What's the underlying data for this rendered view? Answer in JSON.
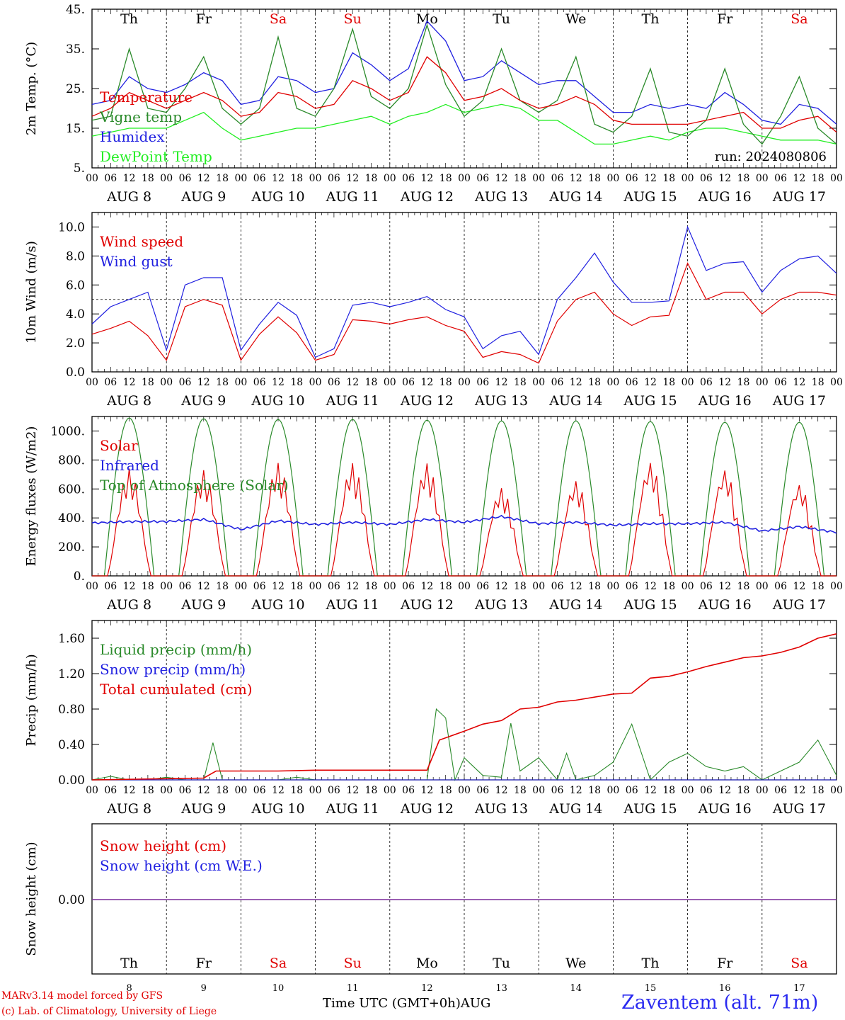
{
  "chart_data": [
    {
      "type": "line",
      "ylabel": "2m Temp. (°C)",
      "ylim": [
        5,
        45
      ],
      "yticks": [
        "45.",
        "35.",
        "25.",
        "15.",
        "5."
      ],
      "annotation": "run: 2024080806",
      "weekday_labels": [
        "Th",
        "Fr",
        "Sa",
        "Su",
        "Mo",
        "Tu",
        "We",
        "Th",
        "Fr",
        "Sa"
      ],
      "weekend_color": "#e00000",
      "legend_placement": "left",
      "series": [
        {
          "name": "Temperature",
          "color": "#e00000",
          "x": [
            0,
            6,
            12,
            18,
            24,
            30,
            36,
            42,
            48,
            54,
            60,
            66,
            72,
            78,
            84,
            90,
            96,
            102,
            108,
            114,
            120,
            126,
            132,
            138,
            144,
            150,
            156,
            162,
            168,
            174,
            180,
            186,
            192,
            198,
            204,
            210,
            216,
            222,
            228,
            234,
            240
          ],
          "y": [
            18,
            20,
            24,
            22,
            20,
            22,
            24,
            22,
            18,
            19,
            24,
            23,
            20,
            21,
            27,
            25,
            22,
            24,
            33,
            29,
            22,
            23,
            25,
            22,
            20,
            21,
            23,
            21,
            17,
            16,
            16,
            16,
            16,
            17,
            18,
            19,
            15,
            15,
            17,
            18,
            14
          ]
        },
        {
          "name": "Vigne temp",
          "color": "#2a8a2a",
          "x": [
            0,
            6,
            12,
            18,
            24,
            30,
            36,
            42,
            48,
            54,
            60,
            66,
            72,
            78,
            84,
            90,
            96,
            102,
            108,
            114,
            120,
            126,
            132,
            138,
            144,
            150,
            156,
            162,
            168,
            174,
            180,
            186,
            192,
            198,
            204,
            210,
            216,
            222,
            228,
            234,
            240
          ],
          "y": [
            17,
            18,
            35,
            20,
            19,
            25,
            33,
            20,
            16,
            20,
            38,
            20,
            18,
            25,
            40,
            23,
            20,
            25,
            41,
            26,
            18,
            22,
            35,
            22,
            19,
            22,
            33,
            16,
            14,
            18,
            30,
            14,
            13,
            17,
            30,
            16,
            11,
            18,
            28,
            15,
            11
          ]
        },
        {
          "name": "Humidex",
          "color": "#2020e0",
          "x": [
            0,
            6,
            12,
            18,
            24,
            30,
            36,
            42,
            48,
            54,
            60,
            66,
            72,
            78,
            84,
            90,
            96,
            102,
            108,
            114,
            120,
            126,
            132,
            138,
            144,
            150,
            156,
            162,
            168,
            174,
            180,
            186,
            192,
            198,
            204,
            210,
            216,
            222,
            228,
            234,
            240
          ],
          "y": [
            21,
            22,
            28,
            25,
            24,
            26,
            29,
            27,
            21,
            22,
            28,
            27,
            24,
            25,
            34,
            31,
            27,
            30,
            42,
            37,
            27,
            28,
            32,
            29,
            26,
            27,
            27,
            23,
            19,
            19,
            21,
            20,
            21,
            20,
            24,
            21,
            17,
            16,
            21,
            20,
            16
          ]
        },
        {
          "name": "DewPoint Temp",
          "color": "#22ee22",
          "x": [
            0,
            6,
            12,
            18,
            24,
            30,
            36,
            42,
            48,
            54,
            60,
            66,
            72,
            78,
            84,
            90,
            96,
            102,
            108,
            114,
            120,
            126,
            132,
            138,
            144,
            150,
            156,
            162,
            168,
            174,
            180,
            186,
            192,
            198,
            204,
            210,
            216,
            222,
            228,
            234,
            240
          ],
          "y": [
            13,
            14,
            15,
            15,
            15,
            17,
            19,
            15,
            12,
            13,
            14,
            15,
            15,
            16,
            17,
            18,
            16,
            18,
            19,
            21,
            19,
            20,
            21,
            20,
            17,
            17,
            14,
            11,
            11,
            12,
            13,
            12,
            14,
            15,
            15,
            14,
            13,
            12,
            12,
            12,
            11
          ]
        }
      ]
    },
    {
      "type": "line",
      "ylabel": "10m Wind (m/s)",
      "ylim": [
        0,
        11
      ],
      "yticks": [
        "10.0",
        "8.0",
        "6.0",
        "4.0",
        "2.0",
        "0.0"
      ],
      "reference_line": 5,
      "legend_placement": "left",
      "series": [
        {
          "name": "Wind speed",
          "color": "#e00000",
          "x": [
            0,
            6,
            12,
            18,
            24,
            30,
            36,
            42,
            48,
            54,
            60,
            66,
            72,
            78,
            84,
            90,
            96,
            102,
            108,
            114,
            120,
            126,
            132,
            138,
            144,
            150,
            156,
            162,
            168,
            174,
            180,
            186,
            192,
            198,
            204,
            210,
            216,
            222,
            228,
            234,
            240
          ],
          "y": [
            2.6,
            3.0,
            3.5,
            2.5,
            0.8,
            4.5,
            5.0,
            4.6,
            0.8,
            2.6,
            3.8,
            2.7,
            0.8,
            1.2,
            3.6,
            3.5,
            3.3,
            3.6,
            3.8,
            3.2,
            2.8,
            1.0,
            1.4,
            1.2,
            0.6,
            3.5,
            5.0,
            5.5,
            4.0,
            3.2,
            3.8,
            3.9,
            7.5,
            5.0,
            5.5,
            5.5,
            4.0,
            5.0,
            5.5,
            5.5,
            5.3
          ]
        },
        {
          "name": "Wind gust",
          "color": "#2020e0",
          "x": [
            0,
            6,
            12,
            18,
            24,
            30,
            36,
            42,
            48,
            54,
            60,
            66,
            72,
            78,
            84,
            90,
            96,
            102,
            108,
            114,
            120,
            126,
            132,
            138,
            144,
            150,
            156,
            162,
            168,
            174,
            180,
            186,
            192,
            198,
            204,
            210,
            216,
            222,
            228,
            234,
            240
          ],
          "y": [
            3.3,
            4.5,
            5.0,
            5.5,
            1.5,
            6.0,
            6.5,
            6.5,
            1.5,
            3.3,
            4.8,
            3.9,
            1.0,
            1.6,
            4.6,
            4.8,
            4.5,
            4.8,
            5.2,
            4.3,
            3.8,
            1.6,
            2.5,
            2.8,
            1.2,
            5.0,
            6.5,
            8.2,
            6.2,
            4.8,
            4.8,
            4.9,
            10.0,
            7.0,
            7.5,
            7.6,
            5.5,
            7.0,
            7.8,
            8.0,
            6.8
          ]
        }
      ]
    },
    {
      "type": "line",
      "ylabel": "Energy fluxes (W/m2)",
      "ylim": [
        0,
        1100
      ],
      "yticks": [
        "1000.",
        "800.",
        "600.",
        "400.",
        "200.",
        "0."
      ],
      "legend_placement": "left",
      "series": [
        {
          "name": "Solar",
          "color": "#e00000",
          "daily_peak": [
            740,
            730,
            780,
            780,
            780,
            610,
            660,
            790,
            740,
            640
          ]
        },
        {
          "name": "Infrared",
          "color": "#2020e0",
          "x": [
            0,
            12,
            24,
            36,
            48,
            60,
            72,
            84,
            96,
            108,
            120,
            132,
            144,
            156,
            168,
            180,
            192,
            204,
            216,
            228,
            240
          ],
          "y": [
            365,
            375,
            375,
            390,
            320,
            380,
            355,
            370,
            355,
            390,
            370,
            410,
            360,
            370,
            350,
            360,
            360,
            370,
            310,
            340,
            300
          ]
        },
        {
          "name": "Top of Atmosphere (Solar)",
          "color": "#2a8a2a",
          "daily_peak": [
            1090,
            1085,
            1080,
            1080,
            1075,
            1070,
            1070,
            1065,
            1060,
            1060
          ]
        }
      ]
    },
    {
      "type": "line",
      "ylabel": "Precip (mm/h)",
      "ylim": [
        0,
        1.8
      ],
      "yticks": [
        "1.60",
        "1.20",
        "0.80",
        "0.40",
        "0.00"
      ],
      "legend_placement": "left",
      "series": [
        {
          "name": "Liquid precip (mm/h)",
          "color": "#2a8a2a",
          "x": [
            0,
            6,
            12,
            18,
            24,
            30,
            36,
            39,
            42,
            48,
            60,
            66,
            72,
            96,
            108,
            111,
            114,
            117,
            120,
            126,
            132,
            135,
            138,
            144,
            150,
            153,
            156,
            162,
            168,
            174,
            180,
            186,
            192,
            198,
            204,
            210,
            216,
            222,
            228,
            234,
            240
          ],
          "y": [
            0,
            0.04,
            0,
            0,
            0.03,
            0,
            0,
            0.42,
            0,
            0,
            0,
            0.03,
            0,
            0,
            0,
            0.8,
            0.7,
            0,
            0.25,
            0.05,
            0.03,
            0.64,
            0.1,
            0.25,
            0,
            0.3,
            0,
            0.05,
            0.2,
            0.63,
            0,
            0.2,
            0.3,
            0.15,
            0.1,
            0.15,
            0,
            0.1,
            0.2,
            0.45,
            0.05
          ]
        },
        {
          "name": "Snow precip (mm/h)",
          "color": "#2020e0",
          "x": [
            0,
            240
          ],
          "y": [
            0,
            0
          ]
        },
        {
          "name": "Total cumulated (cm)",
          "color": "#e00000",
          "x": [
            0,
            36,
            40,
            48,
            60,
            72,
            96,
            108,
            112,
            120,
            126,
            132,
            138,
            144,
            150,
            156,
            168,
            174,
            180,
            186,
            192,
            198,
            204,
            210,
            216,
            222,
            228,
            234,
            240
          ],
          "y": [
            0,
            0.02,
            0.1,
            0.1,
            0.1,
            0.11,
            0.11,
            0.11,
            0.45,
            0.55,
            0.63,
            0.67,
            0.8,
            0.82,
            0.88,
            0.9,
            0.97,
            0.98,
            1.15,
            1.17,
            1.22,
            1.28,
            1.33,
            1.38,
            1.4,
            1.44,
            1.5,
            1.6,
            1.65
          ]
        }
      ]
    },
    {
      "type": "line",
      "ylabel": "Snow height (cm)",
      "yticks": [
        "0.00"
      ],
      "legend_placement": "left",
      "weekday_labels": [
        "Th",
        "Fr",
        "Sa",
        "Su",
        "Mo",
        "Tu",
        "We",
        "Th",
        "Fr",
        "Sa"
      ],
      "day_numbers": [
        "8",
        "9",
        "10",
        "11",
        "12",
        "13",
        "14",
        "15",
        "16",
        "17"
      ],
      "xlabel": "Time UTC (GMT+0h)",
      "month": "AUG",
      "series": [
        {
          "name": "Snow height (cm)",
          "color": "#e00000",
          "x": [
            0,
            240
          ],
          "y": [
            0,
            0
          ]
        },
        {
          "name": "Snow height (cm W.E.)",
          "color": "#2020e0",
          "x": [
            0,
            240
          ],
          "y": [
            0,
            0
          ]
        }
      ]
    }
  ],
  "x_axis": {
    "hour_labels": [
      "00",
      "06",
      "12",
      "18"
    ],
    "end_label": "00",
    "date_labels": [
      "AUG  8",
      "AUG  9",
      "AUG 10",
      "AUG 11",
      "AUG 12",
      "AUG 13",
      "AUG 14",
      "AUG 15",
      "AUG 16",
      "AUG 17"
    ]
  },
  "footer": {
    "model": "MARv3.14 model forced by GFS",
    "copyright": "(c) Lab. of Climatology, University of Liege",
    "station": "Zaventem (alt. 71m)"
  }
}
